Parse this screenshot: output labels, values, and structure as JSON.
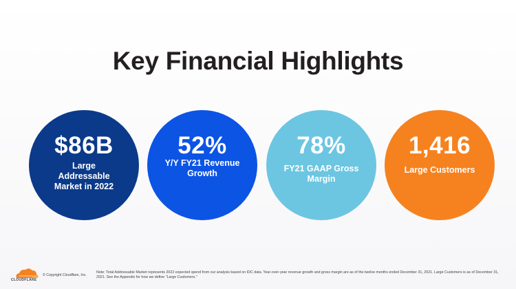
{
  "title": "Key Financial Highlights",
  "metrics": [
    {
      "value": "$86B",
      "label": "Large Addressable Market in 2022",
      "color": "#0c3a8a"
    },
    {
      "value": "52%",
      "label": "Y/Y FY21 Revenue Growth",
      "color": "#0c54e4"
    },
    {
      "value": "78%",
      "label": "FY21 GAAP Gross Margin",
      "color": "#6cc6e2"
    },
    {
      "value": "1,416",
      "label": "Large Customers",
      "color": "#f6821f"
    }
  ],
  "footer": {
    "logo_text": "CLOUDFLARE",
    "copyright": "© Copyright Cloudflare, Inc.",
    "note": "Note: Total Addressable Market represents 2022 expected spend from our analysis based on IDC data. Year-over-year revenue growth and gross margin are as of the twelve months ended December 31, 2021. Large Customers is as of December 31, 2021. See the Appendix for how we define \"Large Customers.\""
  }
}
